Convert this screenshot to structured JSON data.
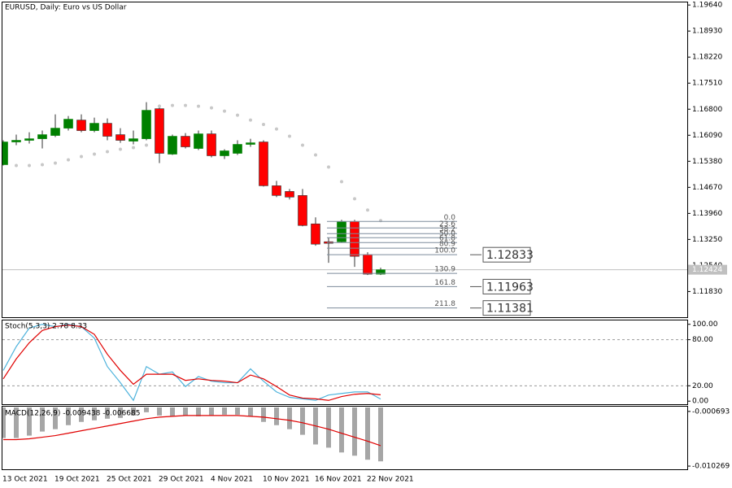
{
  "chart_data": [
    {
      "type": "candlestick",
      "title": "EURUSD, Daily:  Euro vs US Dollar",
      "categories": [
        "13 Oct 2021",
        null,
        null,
        null,
        "19 Oct 2021",
        null,
        null,
        null,
        "25 Oct 2021",
        null,
        null,
        null,
        "29 Oct 2021",
        null,
        null,
        null,
        "4 Nov 2021",
        null,
        null,
        null,
        "10 Nov 2021",
        null,
        null,
        null,
        "16 Nov 2021",
        null,
        null,
        null,
        "22 Nov 2021",
        null
      ],
      "open": [
        1.15288,
        1.15907,
        1.15951,
        1.15995,
        1.16084,
        1.16283,
        1.16504,
        1.16217,
        1.16416,
        1.16106,
        1.15929,
        1.15995,
        1.16814,
        1.15575,
        1.16062,
        1.1573,
        1.16128,
        1.15531,
        1.15597,
        1.15841,
        1.15907,
        1.14713,
        1.14558,
        1.14448,
        1.13674,
        1.13187,
        1.13187,
        1.1374,
        1.12833,
        1.12303
      ],
      "high": [
        1.15951,
        1.16106,
        1.16172,
        1.16217,
        1.16659,
        1.16615,
        1.16659,
        1.16571,
        1.16549,
        1.16283,
        1.16217,
        1.16991,
        1.16925,
        1.16106,
        1.1615,
        1.16217,
        1.16217,
        1.15708,
        1.15951,
        1.15995,
        1.15951,
        1.14846,
        1.14625,
        1.14625,
        1.13851,
        1.13298,
        1.13785,
        1.13785,
        1.129,
        1.1248
      ],
      "low": [
        1.15266,
        1.15819,
        1.15863,
        1.1573,
        1.1604,
        1.16217,
        1.16172,
        1.16172,
        1.15951,
        1.15884,
        1.15841,
        1.15951,
        1.15332,
        1.15553,
        1.1573,
        1.15686,
        1.15487,
        1.15442,
        1.15553,
        1.15774,
        1.14691,
        1.14404,
        1.14338,
        1.13608,
        1.13077,
        1.12612,
        1.13165,
        1.12502,
        1.12281,
        1.12281
      ],
      "close": [
        1.15907,
        1.15951,
        1.15995,
        1.16106,
        1.16283,
        1.16527,
        1.16217,
        1.16416,
        1.16062,
        1.15951,
        1.15995,
        1.1677,
        1.15597,
        1.16062,
        1.15774,
        1.16128,
        1.15531,
        1.15664,
        1.15841,
        1.15884,
        1.14713,
        1.14448,
        1.14404,
        1.1363,
        1.13121,
        1.13143,
        1.1374,
        1.12789,
        1.12303,
        1.12424
      ],
      "up_color": "#008000",
      "down_color": "#ff0000",
      "ylim": [
        1.1113,
        1.1971
      ],
      "yticks": [
        {
          "value": 1.1964,
          "label": "1.19640"
        },
        {
          "value": 1.1893,
          "label": "1.18930"
        },
        {
          "value": 1.1822,
          "label": "1.18220"
        },
        {
          "value": 1.1751,
          "label": "1.17510"
        },
        {
          "value": 1.168,
          "label": "1.16800"
        },
        {
          "value": 1.1609,
          "label": "1.16090"
        },
        {
          "value": 1.1538,
          "label": "1.15380"
        },
        {
          "value": 1.1467,
          "label": "1.14670"
        },
        {
          "value": 1.1396,
          "label": "1.13960"
        },
        {
          "value": 1.1325,
          "label": "1.13250"
        },
        {
          "value": 1.1254,
          "label": "1.12540"
        },
        {
          "value": 1.1183,
          "label": "1.11830"
        }
      ],
      "current_price": 1.12424,
      "sar": {
        "color": "#c8c8c8",
        "values": [
          null,
          1.15266,
          1.15266,
          1.15288,
          1.15332,
          1.15421,
          1.15509,
          1.15575,
          1.15642,
          1.15708,
          1.15752,
          1.15819,
          1.1688,
          1.16902,
          1.16902,
          1.1688,
          1.16836,
          1.16747,
          1.16637,
          1.16504,
          1.16384,
          1.16261,
          1.16062,
          1.15819,
          1.15553,
          1.15222,
          1.14824,
          1.14359,
          1.1405,
          1.13762
        ]
      },
      "fib": {
        "color": "#7d8c9c",
        "levels": [
          {
            "value": 0,
            "label": "0.0"
          },
          23.6,
          38.2,
          {
            "value": 50,
            "label": "50.0"
          },
          61.8,
          80.9,
          {
            "value": 100,
            "label": "100.0"
          },
          130.9,
          161.8,
          211.8
        ],
        "prices": [
          1.1374,
          1.13563,
          1.13409,
          1.13298,
          1.13165,
          1.13011,
          1.12833,
          1.12325,
          1.11963,
          1.11381
        ]
      },
      "targets": [
        1.12833,
        1.11963,
        1.11381
      ]
    },
    {
      "type": "line",
      "title": "Stoch(5,3,3) 2.78 8.33",
      "ylim": [
        -4,
        105
      ],
      "yticks": [
        {
          "value": 100,
          "label": "100.00"
        },
        {
          "value": 80,
          "label": "80.00"
        },
        {
          "value": 20,
          "label": "20.00"
        },
        {
          "value": 0,
          "label": "0.00"
        }
      ],
      "levels": [
        80,
        20
      ],
      "series": [
        {
          "color": "#4fb3dc",
          "values": [
            40,
            71,
            95,
            100,
            97,
            100,
            97,
            82,
            45,
            24,
            1,
            45,
            35,
            38,
            19,
            32,
            26,
            24,
            24,
            42,
            26,
            12,
            5,
            3,
            1,
            8,
            10,
            12,
            12,
            2.78
          ]
        },
        {
          "color": "#e00000",
          "values": [
            29,
            55,
            76,
            92,
            97,
            99,
            97,
            87,
            61,
            40,
            22,
            35,
            35,
            35,
            27,
            29,
            27,
            26,
            24,
            34,
            29,
            19,
            8,
            4,
            3,
            1,
            6,
            9,
            10,
            8.33
          ]
        }
      ]
    },
    {
      "type": "combo",
      "title": "MACD(12,26,9) -0.009438 -0.006685",
      "ylim": [
        -0.01083,
        0.00014
      ],
      "yticks": [
        -0.000693,
        -0.010269
      ],
      "series": [
        {
          "kind": "bar",
          "color": "#a6a6a6",
          "values": [
            -0.00535,
            -0.00535,
            -0.00493,
            -0.00422,
            -0.0038,
            -0.0031,
            -0.00253,
            -0.00225,
            -0.00197,
            -0.00183,
            -0.00141,
            -0.00084,
            -0.00141,
            -0.00155,
            -0.00141,
            -0.00155,
            -0.00141,
            -0.00127,
            -0.00127,
            -0.00155,
            -0.00253,
            -0.0031,
            -0.0038,
            -0.00479,
            -0.00648,
            -0.00704,
            -0.00788,
            -0.00845,
            -0.00915,
            -0.009438
          ]
        },
        {
          "kind": "line",
          "color": "#e00000",
          "values": [
            -0.00563,
            -0.00563,
            -0.00549,
            -0.00521,
            -0.00493,
            -0.00451,
            -0.00408,
            -0.00366,
            -0.00324,
            -0.00282,
            -0.00239,
            -0.00197,
            -0.00169,
            -0.00155,
            -0.00141,
            -0.00141,
            -0.00141,
            -0.00141,
            -0.00141,
            -0.00155,
            -0.00169,
            -0.00197,
            -0.00225,
            -0.00268,
            -0.00324,
            -0.0038,
            -0.00451,
            -0.00521,
            -0.00591,
            -0.006685
          ]
        }
      ]
    }
  ]
}
